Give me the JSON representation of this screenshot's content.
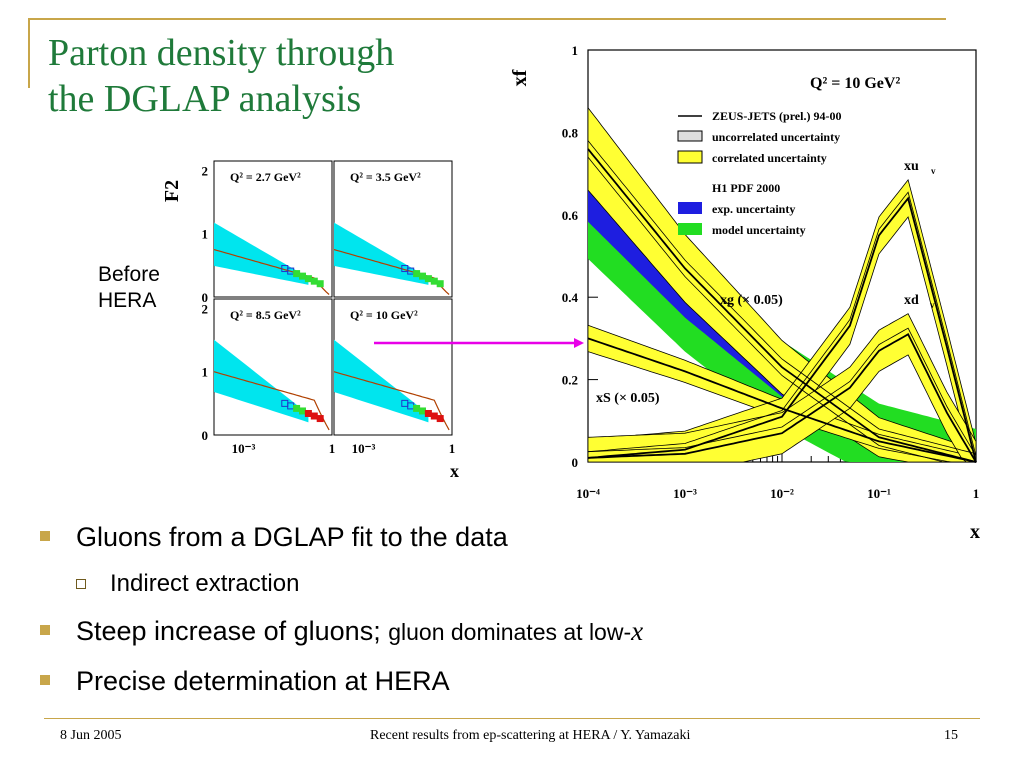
{
  "slide": {
    "title_line1": "Parton density through",
    "title_line2": "the DGLAP analysis",
    "side_label_line1": "Before",
    "side_label_line2": "HERA",
    "bullets": [
      {
        "text": "Gluons from a DGLAP fit to the data"
      },
      {
        "text": "Indirect extraction"
      },
      {
        "text_main": "Steep increase of gluons; ",
        "text_small": "gluon dominates at low-",
        "text_var": "x"
      },
      {
        "text": "Precise determination at HERA"
      }
    ],
    "footer": {
      "date": "8 Jun 2005",
      "center": "Recent results from ep-scattering at HERA / Y. Yamazaki",
      "page": "15"
    },
    "colors": {
      "title": "#1f7a3a",
      "accent_line": "#c8a64a",
      "arrow": "#e800e8"
    }
  },
  "chart_data": [
    {
      "type": "line",
      "ylabel": "F2",
      "xlabel": "x",
      "x_ticks": [
        "10⁻³",
        "1"
      ],
      "y_ticks": [
        "0",
        "1",
        "2"
      ],
      "xscale": "log",
      "panels": [
        {
          "label": "Q² = 2.7 GeV²"
        },
        {
          "label": "Q² = 3.5 GeV²"
        },
        {
          "label": "Q² = 8.5 GeV²"
        },
        {
          "label": "Q² = 10 GeV²"
        }
      ],
      "colors": {
        "band": "#00e5ee",
        "curve": "#b04000",
        "data_green": "#33dd33",
        "data_blue": "#2233cc",
        "data_red": "#dd1111"
      }
    },
    {
      "type": "line",
      "title": "Q² = 10 GeV²",
      "ylabel": "xf",
      "xlabel": "x",
      "xscale": "log",
      "xlim": [
        0.0001,
        1
      ],
      "ylim": [
        0,
        1
      ],
      "x_ticks": [
        "10⁻⁴",
        "10⁻³",
        "10⁻²",
        "10⁻¹",
        "1"
      ],
      "y_ticks": [
        "0",
        "0.2",
        "0.4",
        "0.6",
        "0.8",
        "1"
      ],
      "legend": {
        "zeus_line": "ZEUS-JETS (prel.) 94-00",
        "zeus_uncorr": "uncorrelated uncertainty",
        "zeus_corr": "correlated uncertainty",
        "h1_title": "H1 PDF 2000",
        "h1_exp": "exp. uncertainty",
        "h1_model": "model uncertainty"
      },
      "series_labels": {
        "xg": "xg (× 0.05)",
        "xS": "xS (× 0.05)",
        "xuv": "xu",
        "xuv_sub": "v",
        "xdv": "xd",
        "xdv_sub": "v"
      },
      "series": [
        {
          "name": "xg (× 0.05)",
          "x": [
            0.0001,
            0.001,
            0.01,
            0.1,
            1
          ],
          "values": [
            0.76,
            0.47,
            0.23,
            0.06,
            0.0
          ]
        },
        {
          "name": "xS (× 0.05)",
          "x": [
            0.0001,
            0.001,
            0.01,
            0.1,
            1
          ],
          "values": [
            0.3,
            0.22,
            0.13,
            0.05,
            0.0
          ]
        },
        {
          "name": "xu",
          "x": [
            0.0001,
            0.001,
            0.01,
            0.05,
            0.1,
            0.2,
            0.5,
            1
          ],
          "values": [
            0.01,
            0.03,
            0.11,
            0.33,
            0.55,
            0.64,
            0.28,
            0.0
          ]
        },
        {
          "name": "xd",
          "x": [
            0.0001,
            0.001,
            0.01,
            0.05,
            0.1,
            0.2,
            0.5,
            1
          ],
          "values": [
            0.01,
            0.02,
            0.07,
            0.18,
            0.27,
            0.31,
            0.12,
            0.0
          ]
        }
      ],
      "colors": {
        "zeus_corr": "#ffff33",
        "h1_exp": "#1e1ee0",
        "h1_model": "#22dd22",
        "central": "#000000"
      }
    }
  ]
}
